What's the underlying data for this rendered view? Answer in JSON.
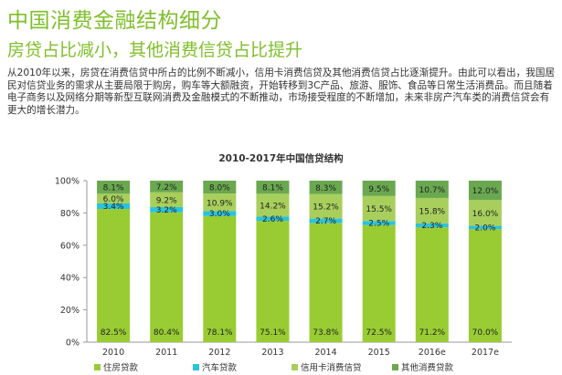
{
  "page": {
    "title": "中国消费金融结构细分",
    "subtitle": "房贷占比减小，其他消费信贷占比提升",
    "intro": "从2010年以来，房贷在消费信贷中所占的比例不断减小，信用卡消费信贷及其他消费信贷占比逐渐提升。由此可以看出，我国居民对信贷业务的需求从主要局限于购房，购车等大额融资，开始转移到3C产品、旅游、服饰、食品等日常生活消费品。而且随着电子商务以及网络分期等新型互联网消费及金融模式的不断推动，市场接受程度的不断增加，未来非房产汽车类的消费信贷会有更大的增长潜力。"
  },
  "colors": {
    "accent": "#7fbf2a",
    "housing": "#99cc33",
    "auto": "#29c3dd",
    "credit_card": "#a8cf5c",
    "other": "#6aa84f"
  },
  "chart_data": {
    "type": "bar",
    "stacked": true,
    "title": "2010-2017年中国信贷结构",
    "xlabel": "",
    "ylabel": "",
    "ylim": [
      0,
      100
    ],
    "yticks": [
      "0%",
      "20%",
      "40%",
      "60%",
      "80%",
      "100%"
    ],
    "grid": false,
    "legend_position": "bottom",
    "categories": [
      "2010",
      "2011",
      "2012",
      "2013",
      "2014",
      "2015",
      "2016e",
      "2017e"
    ],
    "series": [
      {
        "name": "住房贷款",
        "color": "#99cc33",
        "values": [
          82.5,
          80.4,
          78.1,
          75.1,
          73.8,
          72.5,
          71.2,
          70.0
        ],
        "labels": [
          "82.5%",
          "80.4%",
          "78.1%",
          "75.1%",
          "73.8%",
          "72.5%",
          "71.2%",
          "70.0%"
        ]
      },
      {
        "name": "汽车贷款",
        "color": "#29c3dd",
        "values": [
          3.4,
          3.2,
          3.0,
          2.6,
          2.7,
          2.5,
          2.3,
          2.0
        ],
        "labels": [
          "3.4%",
          "3.2%",
          "3.0%",
          "2.6%",
          "2.7%",
          "2.5%",
          "2.3%",
          "2.0%"
        ]
      },
      {
        "name": "信用卡消费信贷",
        "color": "#a8cf5c",
        "values": [
          6.0,
          9.2,
          10.9,
          14.2,
          15.2,
          15.5,
          15.8,
          16.0
        ],
        "labels": [
          "6.0%",
          "9.2%",
          "10.9%",
          "14.2%",
          "15.2%",
          "15.5%",
          "15.8%",
          "16.0%"
        ]
      },
      {
        "name": "其他消费贷款",
        "color": "#6aa84f",
        "values": [
          8.1,
          7.2,
          8.0,
          8.1,
          8.3,
          9.5,
          10.7,
          12.0
        ],
        "labels": [
          "8.1%",
          "7.2%",
          "8.0%",
          "8.1%",
          "8.3%",
          "9.5%",
          "10.7%",
          "12.0%"
        ]
      }
    ]
  }
}
